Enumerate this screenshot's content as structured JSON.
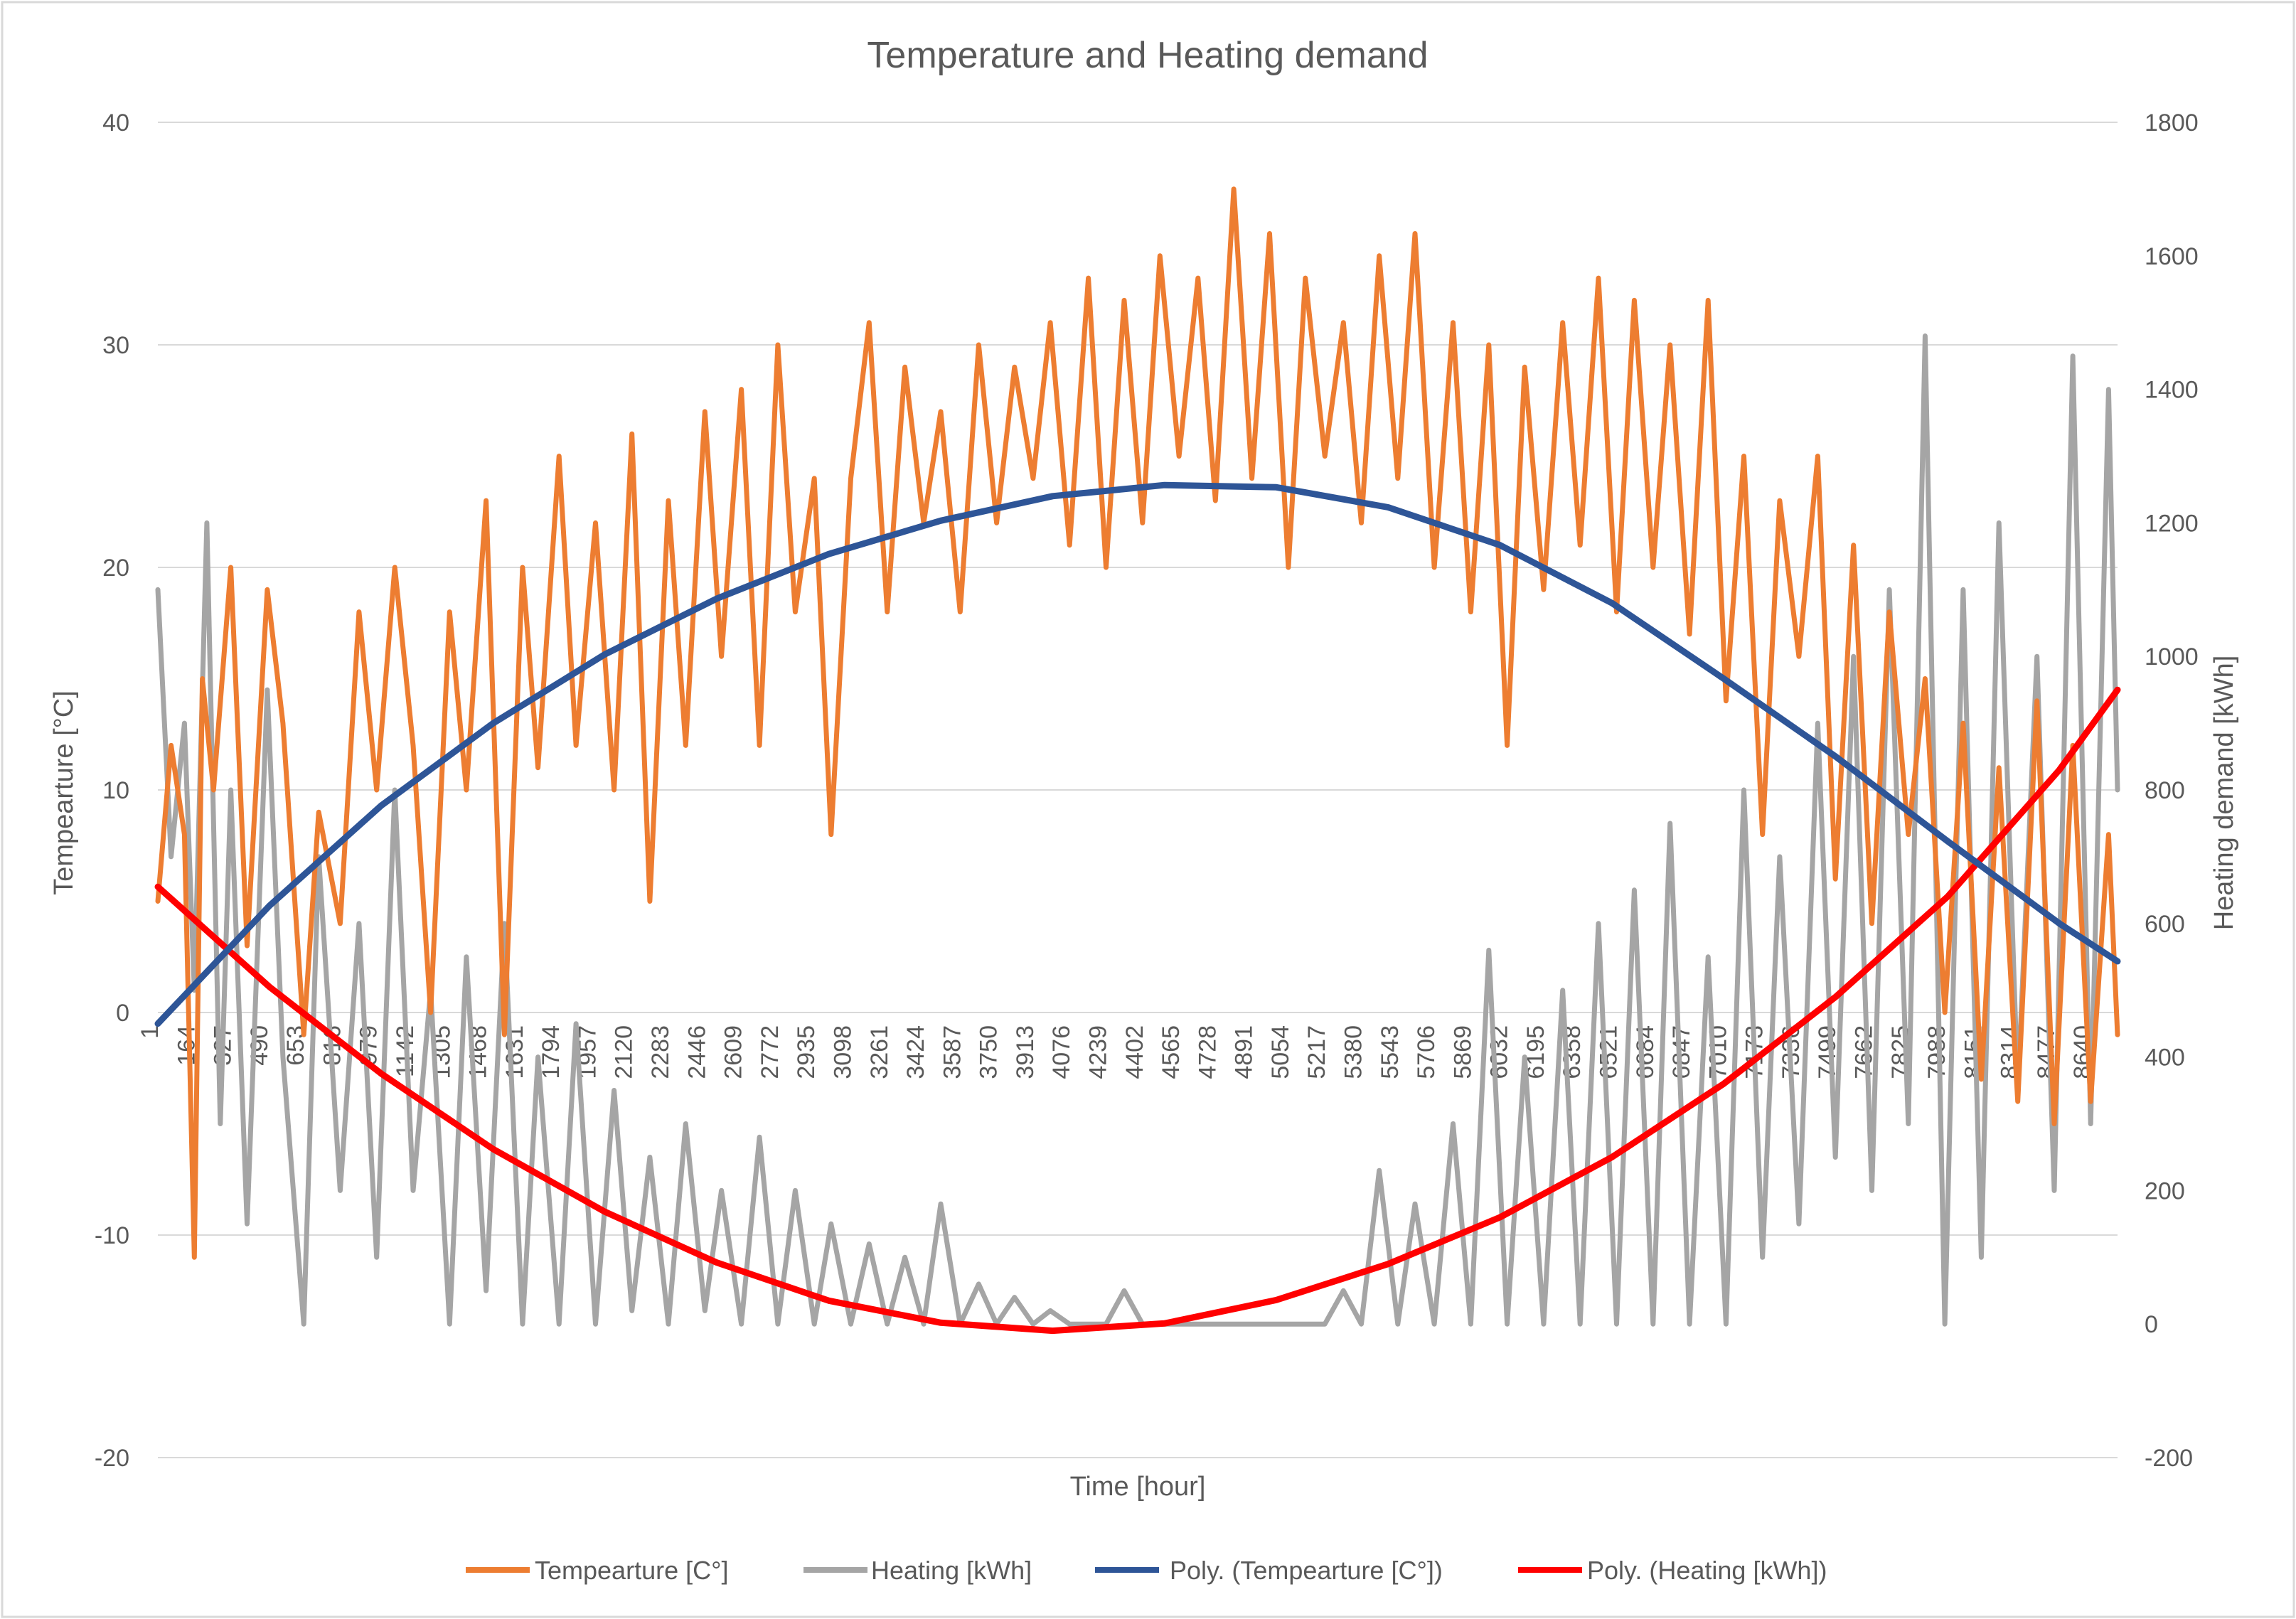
{
  "chart_data": {
    "type": "line",
    "title": "Temperature and Heating demand",
    "xlabel": "Time [hour]",
    "ylabel_left": "Tempearture [°C]",
    "ylabel_right": "Heating demand [kWh]",
    "xlim": [
      1,
      8760
    ],
    "ylim_left": [
      -20,
      40
    ],
    "ylim_right": [
      -200,
      1800
    ],
    "left_ticks": [
      -20,
      -10,
      0,
      10,
      20,
      30,
      40
    ],
    "right_ticks": [
      -200,
      0,
      200,
      400,
      600,
      800,
      1000,
      1200,
      1400,
      1600,
      1800
    ],
    "x_ticks": [
      1,
      164,
      327,
      490,
      653,
      816,
      979,
      1142,
      1305,
      1468,
      1631,
      1794,
      1957,
      2120,
      2283,
      2446,
      2609,
      2772,
      2935,
      3098,
      3261,
      3424,
      3587,
      3750,
      3913,
      4076,
      4239,
      4402,
      4565,
      4728,
      4891,
      5054,
      5217,
      5380,
      5543,
      5706,
      5869,
      6032,
      6195,
      6358,
      6521,
      6684,
      6847,
      7010,
      7173,
      7336,
      7499,
      7662,
      7825,
      7988,
      8151,
      8314,
      8477,
      8640
    ],
    "grid": true,
    "legend_position": "bottom",
    "series": [
      {
        "name": "Tempearture [C°]",
        "axis": "left",
        "color": "#ED7D31",
        "x": [
          1,
          60,
          120,
          164,
          200,
          250,
          327,
          400,
          490,
          560,
          653,
          720,
          816,
          900,
          979,
          1060,
          1142,
          1220,
          1305,
          1380,
          1468,
          1550,
          1631,
          1700,
          1794,
          1870,
          1957,
          2040,
          2120,
          2200,
          2283,
          2360,
          2446,
          2520,
          2609,
          2690,
          2772,
          2850,
          2935,
          3010,
          3098,
          3180,
          3261,
          3340,
          3424,
          3500,
          3587,
          3670,
          3750,
          3830,
          3913,
          3990,
          4076,
          4160,
          4239,
          4320,
          4402,
          4480,
          4565,
          4650,
          4728,
          4810,
          4891,
          4970,
          5054,
          5130,
          5217,
          5300,
          5380,
          5460,
          5543,
          5620,
          5706,
          5790,
          5869,
          5950,
          6032,
          6110,
          6195,
          6280,
          6358,
          6440,
          6521,
          6600,
          6684,
          6760,
          6847,
          6930,
          7010,
          7090,
          7173,
          7250,
          7336,
          7420,
          7499,
          7580,
          7662,
          7740,
          7825,
          7900,
          7988,
          8070,
          8151,
          8230,
          8314,
          8400,
          8477,
          8560,
          8640,
          8720,
          8760
        ],
        "values": [
          5,
          12,
          8,
          -11,
          15,
          10,
          20,
          3,
          19,
          13,
          -1,
          9,
          4,
          18,
          10,
          20,
          12,
          0,
          18,
          10,
          23,
          -1,
          20,
          11,
          25,
          12,
          22,
          10,
          26,
          5,
          23,
          12,
          27,
          16,
          28,
          12,
          30,
          18,
          24,
          8,
          24,
          31,
          18,
          29,
          22,
          27,
          18,
          30,
          22,
          29,
          24,
          31,
          21,
          33,
          20,
          32,
          22,
          34,
          25,
          33,
          23,
          37,
          24,
          35,
          20,
          33,
          25,
          31,
          22,
          34,
          24,
          35,
          20,
          31,
          18,
          30,
          12,
          29,
          19,
          31,
          21,
          33,
          18,
          32,
          20,
          30,
          17,
          32,
          14,
          25,
          8,
          23,
          16,
          25,
          6,
          21,
          4,
          18,
          8,
          15,
          0,
          13,
          -3,
          11,
          -4,
          14,
          -5,
          12,
          -4,
          8,
          -1
        ]
      },
      {
        "name": "Heating [kWh]",
        "axis": "right",
        "color": "#A5A5A5",
        "x": [
          1,
          60,
          120,
          164,
          220,
          280,
          327,
          400,
          490,
          560,
          653,
          720,
          816,
          900,
          979,
          1060,
          1142,
          1220,
          1305,
          1380,
          1468,
          1550,
          1631,
          1700,
          1794,
          1870,
          1957,
          2040,
          2120,
          2200,
          2283,
          2360,
          2446,
          2520,
          2609,
          2690,
          2772,
          2850,
          2935,
          3010,
          3098,
          3180,
          3261,
          3340,
          3424,
          3500,
          3587,
          3670,
          3750,
          3830,
          3913,
          3990,
          4076,
          4160,
          4239,
          4320,
          4402,
          4480,
          4565,
          4650,
          4728,
          4810,
          4891,
          4970,
          5054,
          5130,
          5217,
          5300,
          5380,
          5460,
          5543,
          5620,
          5706,
          5790,
          5869,
          5950,
          6032,
          6110,
          6195,
          6280,
          6358,
          6440,
          6521,
          6600,
          6684,
          6760,
          6847,
          6930,
          7010,
          7090,
          7173,
          7250,
          7336,
          7420,
          7499,
          7580,
          7662,
          7740,
          7825,
          7900,
          7988,
          8070,
          8151,
          8230,
          8314,
          8400,
          8477,
          8560,
          8640,
          8720,
          8760
        ],
        "values": [
          1100,
          700,
          900,
          500,
          1200,
          300,
          800,
          150,
          950,
          400,
          0,
          700,
          200,
          600,
          100,
          800,
          200,
          500,
          0,
          550,
          50,
          600,
          0,
          400,
          0,
          450,
          0,
          350,
          20,
          250,
          0,
          300,
          20,
          200,
          0,
          280,
          0,
          200,
          0,
          150,
          0,
          120,
          0,
          100,
          0,
          180,
          0,
          60,
          0,
          40,
          0,
          20,
          0,
          0,
          0,
          50,
          0,
          0,
          0,
          0,
          0,
          0,
          0,
          0,
          0,
          0,
          0,
          50,
          0,
          230,
          0,
          180,
          0,
          300,
          0,
          560,
          0,
          400,
          0,
          500,
          0,
          600,
          0,
          650,
          0,
          750,
          0,
          550,
          0,
          800,
          100,
          700,
          150,
          900,
          250,
          1000,
          200,
          1100,
          300,
          1480,
          0,
          1100,
          100,
          1200,
          350,
          1000,
          200,
          1450,
          300,
          1400,
          800
        ]
      },
      {
        "name": "Poly. (Tempearture [C°])",
        "axis": "left",
        "color": "#2E5597",
        "x": [
          1,
          500,
          1000,
          1500,
          2000,
          2500,
          3000,
          3500,
          4000,
          4500,
          5000,
          5500,
          6000,
          6500,
          7000,
          7500,
          8000,
          8500,
          8760
        ],
        "values": [
          -0.5,
          4.8,
          9.3,
          13.0,
          16.1,
          18.6,
          20.6,
          22.1,
          23.2,
          23.7,
          23.6,
          22.7,
          21.0,
          18.4,
          15.0,
          11.5,
          7.7,
          4.0,
          2.3
        ]
      },
      {
        "name": "Poly. (Heating [kWh])",
        "axis": "right",
        "color": "#FF0000",
        "x": [
          1,
          500,
          1000,
          1500,
          2000,
          2500,
          3000,
          3500,
          4000,
          4500,
          5000,
          5500,
          6000,
          6500,
          7000,
          7500,
          8000,
          8500,
          8760
        ],
        "values": [
          655,
          505,
          375,
          262,
          168,
          92,
          35,
          2,
          -10,
          1,
          36,
          90,
          160,
          250,
          360,
          490,
          640,
          830,
          950
        ]
      }
    ]
  }
}
